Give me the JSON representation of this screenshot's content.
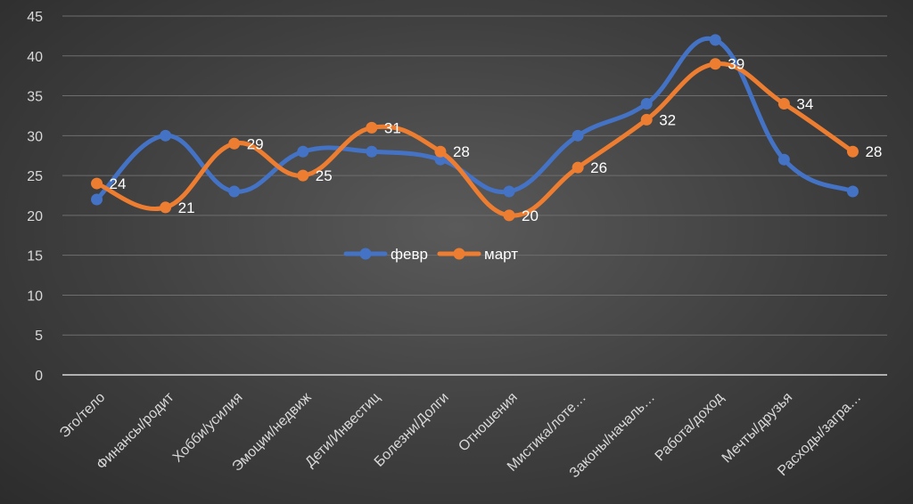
{
  "chart_data": {
    "type": "line",
    "title": "",
    "xlabel": "",
    "ylabel": "",
    "ylim": [
      0,
      45
    ],
    "yticks": [
      0,
      5,
      10,
      15,
      20,
      25,
      30,
      35,
      40,
      45
    ],
    "grid": true,
    "legend_position": "center",
    "categories": [
      "Эго/тело",
      "Финансы/родит",
      "Хобби/усилия",
      "Эмоции/недвиж",
      "Дети/Инвестиц",
      "Болезни/Долги",
      "Отношения",
      "Мистика/лоте…",
      "Законы/началь…",
      "Работа/доход",
      "Мечты/друзья",
      "Расходы/загра…"
    ],
    "series": [
      {
        "name": "февр",
        "color": "#4472C4",
        "values": [
          22,
          30,
          23,
          28,
          28,
          27,
          23,
          30,
          34,
          42,
          27,
          23
        ],
        "show_labels": false
      },
      {
        "name": "март",
        "color": "#ED7D31",
        "values": [
          24,
          21,
          29,
          25,
          31,
          28,
          20,
          26,
          32,
          39,
          34,
          28
        ],
        "show_labels": true
      }
    ]
  }
}
